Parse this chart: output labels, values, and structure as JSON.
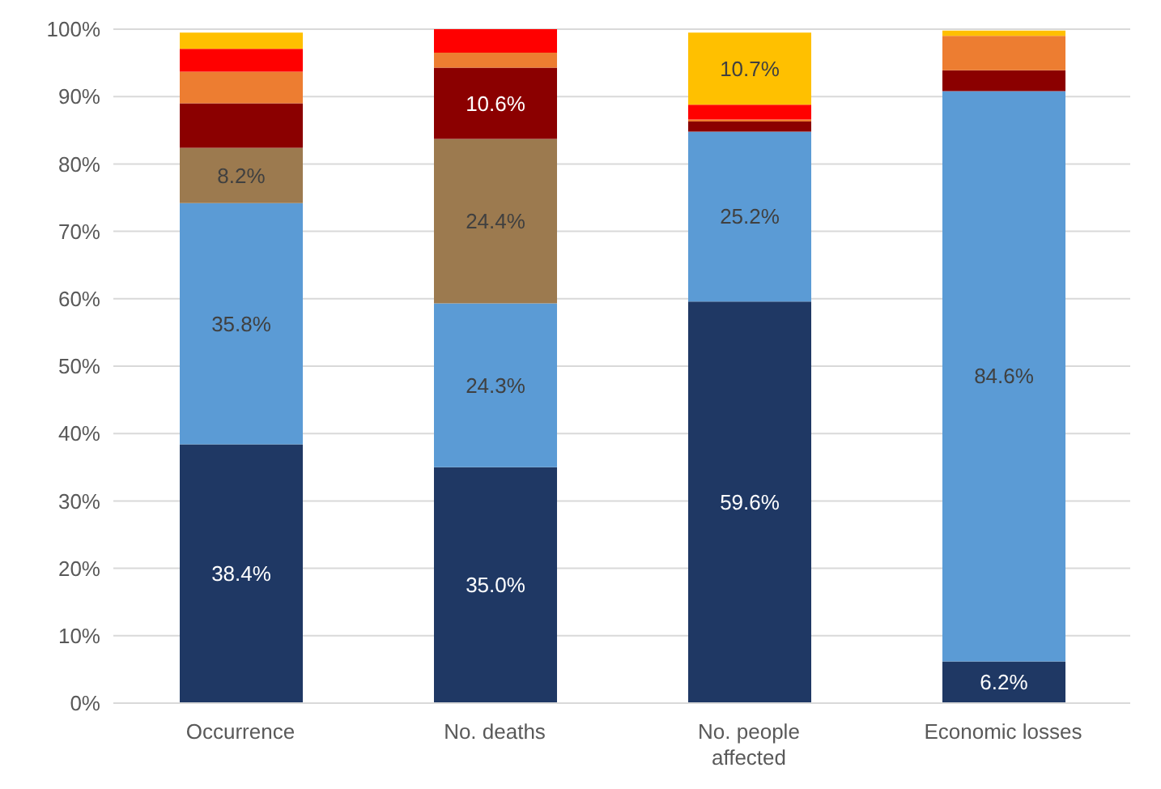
{
  "chart_data": {
    "type": "bar",
    "stacked": true,
    "categories": [
      "Occurrence",
      "No. deaths",
      "No. people affected",
      "Economic losses"
    ],
    "series": [
      {
        "color": "#1f3864",
        "values": [
          38.4,
          35.0,
          59.6,
          6.2
        ],
        "value_labels": [
          "38.4%",
          "35.0%",
          "59.6%",
          "6.2%"
        ]
      },
      {
        "color": "#5b9bd5",
        "values": [
          35.8,
          24.3,
          25.2,
          84.6
        ],
        "value_labels": [
          "35.8%",
          "24.3%",
          "25.2%",
          "84.6%"
        ]
      },
      {
        "color": "#9c7a4f",
        "values": [
          8.2,
          24.4,
          0,
          0
        ],
        "value_labels": [
          "8.2%",
          "24.4%",
          null,
          null
        ]
      },
      {
        "color": "#8b0000",
        "values": [
          6.6,
          10.6,
          1.5,
          3.1
        ],
        "value_labels": [
          null,
          "10.6%",
          null,
          null
        ]
      },
      {
        "color": "#ed7d31",
        "values": [
          4.7,
          2.2,
          0.3,
          5.1
        ]
      },
      {
        "color": "#ff0000",
        "values": [
          3.4,
          3.7,
          2.2,
          0
        ]
      },
      {
        "color": "#ffc000",
        "values": [
          2.4,
          0,
          10.7,
          0.8
        ],
        "value_labels": [
          null,
          null,
          "10.7%",
          null
        ]
      }
    ],
    "ylim": [
      0,
      100
    ],
    "yticks": [
      {
        "value": 0,
        "label": "0%"
      },
      {
        "value": 10,
        "label": "10%"
      },
      {
        "value": 20,
        "label": "20%"
      },
      {
        "value": 30,
        "label": "30%"
      },
      {
        "value": 40,
        "label": "40%"
      },
      {
        "value": 50,
        "label": "50%"
      },
      {
        "value": 60,
        "label": "60%"
      },
      {
        "value": 70,
        "label": "70%"
      },
      {
        "value": 80,
        "label": "80%"
      },
      {
        "value": 90,
        "label": "90%"
      },
      {
        "value": 100,
        "label": "100%"
      }
    ],
    "grid": "y",
    "legend": false
  }
}
